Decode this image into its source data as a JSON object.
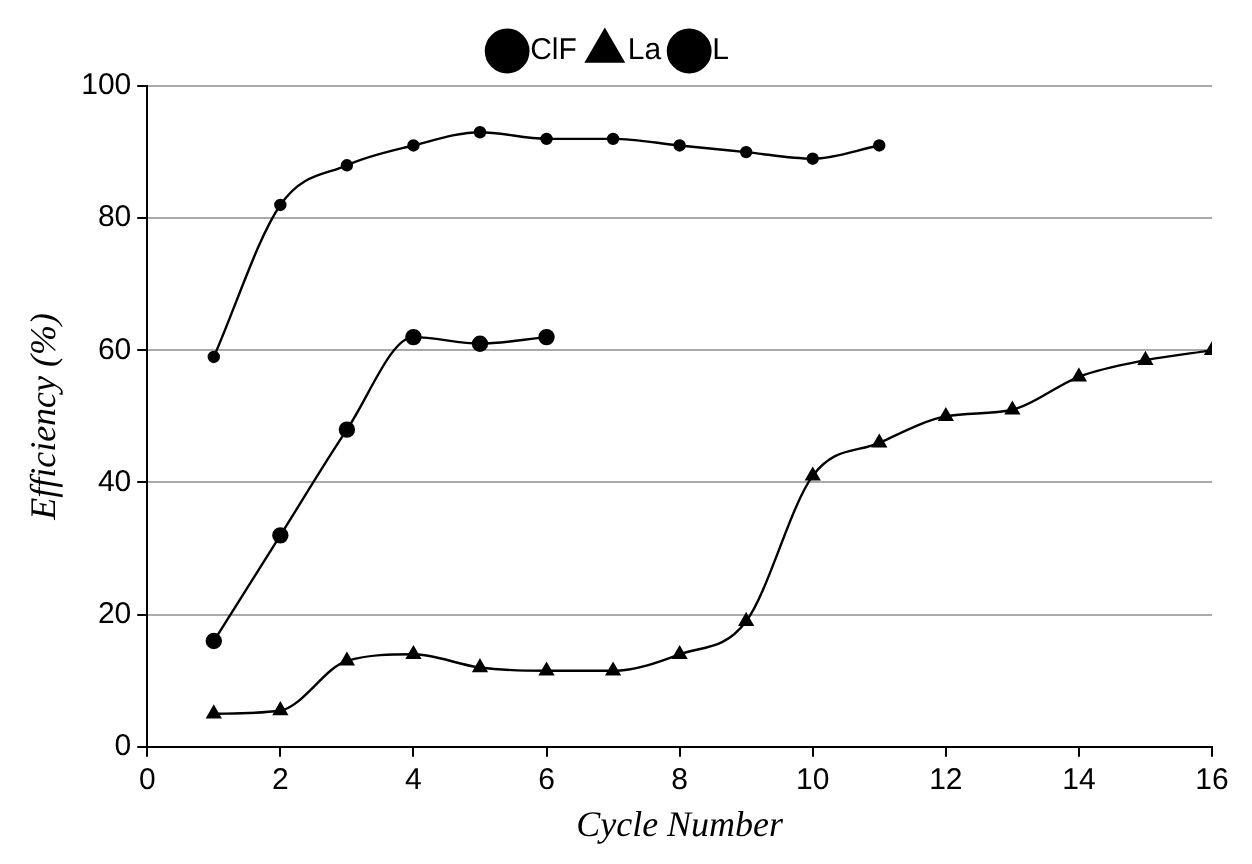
{
  "chart_data": {
    "type": "line",
    "xlabel": "Cycle Number",
    "ylabel": "Efficiency (%)",
    "xlim": [
      0,
      16
    ],
    "xticks": [
      0,
      2,
      4,
      6,
      8,
      10,
      12,
      14,
      16
    ],
    "ylim": [
      0,
      100
    ],
    "yticks": [
      0,
      20,
      40,
      60,
      80,
      100
    ],
    "grid": "y",
    "legend": "top",
    "series": [
      {
        "name": "ClF",
        "color": "#000000",
        "marker": "circle",
        "x": [
          1,
          2,
          3,
          4,
          5,
          6
        ],
        "values": [
          16,
          32,
          48,
          62,
          61,
          62
        ]
      },
      {
        "name": "La",
        "color": "#000000",
        "marker": "triangle",
        "x": [
          1,
          2,
          3,
          4,
          5,
          6,
          7,
          8,
          9,
          10,
          11,
          12,
          13,
          14,
          15,
          16
        ],
        "values": [
          5,
          5.5,
          13,
          14,
          12,
          11.5,
          11.5,
          14,
          19,
          41,
          46,
          50,
          51,
          56,
          58.5,
          60
        ]
      },
      {
        "name": "L",
        "color": "#000000",
        "marker": "circle",
        "x": [
          1,
          2,
          3,
          4,
          5,
          6,
          7,
          8,
          9,
          10,
          11
        ],
        "values": [
          59,
          82,
          88,
          91,
          93,
          92,
          92,
          91,
          90,
          89,
          91
        ]
      }
    ]
  }
}
